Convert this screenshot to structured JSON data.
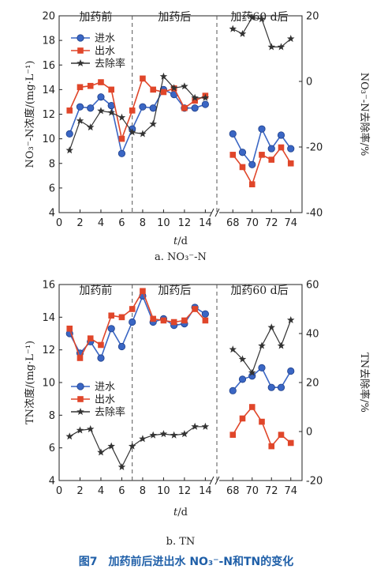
{
  "figure_caption": "图7　加药前后进出水 NO₃⁻-N和TN的变化",
  "colors": {
    "influent": "#3a66c4",
    "effluent": "#e0462a",
    "removal": "#333333",
    "axis": "#222222"
  },
  "chart_data": [
    {
      "type": "line",
      "sublabel": "a. NO₃⁻-N",
      "ylabel": "NO₃⁻-N浓度/(mg·L⁻¹)",
      "y2label": "NO₃⁻-N去除率/%",
      "xlabel": "t/d",
      "phases": [
        "加药前",
        "加药后",
        "加药60 d后"
      ],
      "ylim": [
        4,
        20
      ],
      "yticks": [
        4,
        6,
        8,
        10,
        12,
        14,
        16,
        18,
        20
      ],
      "y2lim": [
        -40,
        20
      ],
      "y2ticks": [
        -40,
        -20,
        0,
        20
      ],
      "x_ticks_left": [
        "0",
        "2",
        "4",
        "6",
        "8",
        "10",
        "12",
        "14"
      ],
      "x_ticks_right": [
        "68",
        "70",
        "72",
        "74"
      ],
      "series": [
        {
          "name": "进水",
          "axis": "left",
          "left_x": [
            1,
            2,
            3,
            4,
            5,
            6,
            7,
            8,
            9,
            10,
            11,
            12,
            13,
            14
          ],
          "left_y": [
            10.4,
            12.6,
            12.5,
            13.4,
            12.7,
            8.8,
            10.8,
            12.6,
            12.5,
            14.0,
            13.6,
            12.5,
            12.5,
            12.8
          ],
          "right_x": [
            68,
            69,
            70,
            71,
            72,
            73,
            74
          ],
          "right_y": [
            10.4,
            8.9,
            7.9,
            10.8,
            9.2,
            10.3,
            9.2
          ]
        },
        {
          "name": "出水",
          "axis": "left",
          "left_x": [
            1,
            2,
            3,
            4,
            5,
            6,
            7,
            8,
            9,
            10,
            11,
            12,
            13,
            14
          ],
          "left_y": [
            12.3,
            14.2,
            14.3,
            14.6,
            14.0,
            10.0,
            12.3,
            14.9,
            14.0,
            13.8,
            14.1,
            12.5,
            13.1,
            13.5
          ],
          "right_x": [
            68,
            69,
            70,
            71,
            72,
            73,
            74
          ],
          "right_y": [
            8.7,
            7.7,
            6.3,
            8.7,
            8.3,
            9.3,
            8.0
          ]
        },
        {
          "name": "去除率",
          "axis": "right",
          "left_x": [
            1,
            2,
            3,
            4,
            5,
            6,
            7,
            8,
            9,
            10,
            11,
            12,
            13,
            14
          ],
          "left_y": [
            -21,
            -12,
            -14,
            -9,
            -9.5,
            -11,
            -15.5,
            -16,
            -13,
            1.5,
            -2,
            -1.5,
            -5,
            -5
          ],
          "right_x": [
            68,
            69,
            70,
            71,
            72,
            73,
            74
          ],
          "right_y": [
            16,
            14.5,
            19.5,
            19,
            10.5,
            10.5,
            13
          ]
        }
      ]
    },
    {
      "type": "line",
      "sublabel": "b. TN",
      "ylabel": "TN浓度/(mg·L⁻¹)",
      "y2label": "TN去除率/%",
      "xlabel": "t/d",
      "phases": [
        "加药前",
        "加药后",
        "加药60 d后"
      ],
      "ylim": [
        4,
        16
      ],
      "yticks": [
        4,
        6,
        8,
        10,
        12,
        14,
        16
      ],
      "y2lim": [
        -20,
        60
      ],
      "y2ticks": [
        -20,
        0,
        20,
        40,
        60
      ],
      "x_ticks_left": [
        "0",
        "2",
        "4",
        "6",
        "8",
        "10",
        "12",
        "14"
      ],
      "x_ticks_right": [
        "68",
        "70",
        "72",
        "74"
      ],
      "series": [
        {
          "name": "进水",
          "axis": "left",
          "left_x": [
            1,
            2,
            3,
            4,
            5,
            6,
            7,
            8,
            9,
            10,
            11,
            12,
            13,
            14
          ],
          "left_y": [
            13.0,
            11.8,
            12.5,
            11.5,
            13.3,
            12.2,
            13.7,
            15.3,
            13.7,
            13.9,
            13.5,
            13.6,
            14.6,
            14.2
          ],
          "right_x": [
            68,
            69,
            70,
            71,
            72,
            73,
            74
          ],
          "right_y": [
            9.5,
            10.2,
            10.4,
            10.9,
            9.7,
            9.7,
            10.7
          ]
        },
        {
          "name": "出水",
          "axis": "left",
          "left_x": [
            1,
            2,
            3,
            4,
            5,
            6,
            7,
            8,
            9,
            10,
            11,
            12,
            13,
            14
          ],
          "left_y": [
            13.3,
            11.5,
            12.7,
            12.3,
            14.1,
            14.0,
            14.5,
            15.6,
            13.9,
            13.8,
            13.7,
            13.8,
            14.5,
            13.8
          ],
          "right_x": [
            68,
            69,
            70,
            71,
            72,
            73,
            74
          ],
          "right_y": [
            6.8,
            7.8,
            8.5,
            7.6,
            6.1,
            6.8,
            6.3
          ]
        },
        {
          "name": "去除率",
          "axis": "right",
          "left_x": [
            1,
            2,
            3,
            4,
            5,
            6,
            7,
            8,
            9,
            10,
            11,
            12,
            13,
            14
          ],
          "left_y": [
            -2,
            0.5,
            1,
            -8.5,
            -6,
            -14.5,
            -6,
            -3,
            -1.5,
            -1,
            -1.5,
            -1,
            2,
            2
          ],
          "right_x": [
            68,
            69,
            70,
            71,
            72,
            73,
            74
          ],
          "right_y": [
            33.5,
            29.5,
            24,
            35,
            42.5,
            35,
            45.5
          ]
        }
      ]
    }
  ]
}
